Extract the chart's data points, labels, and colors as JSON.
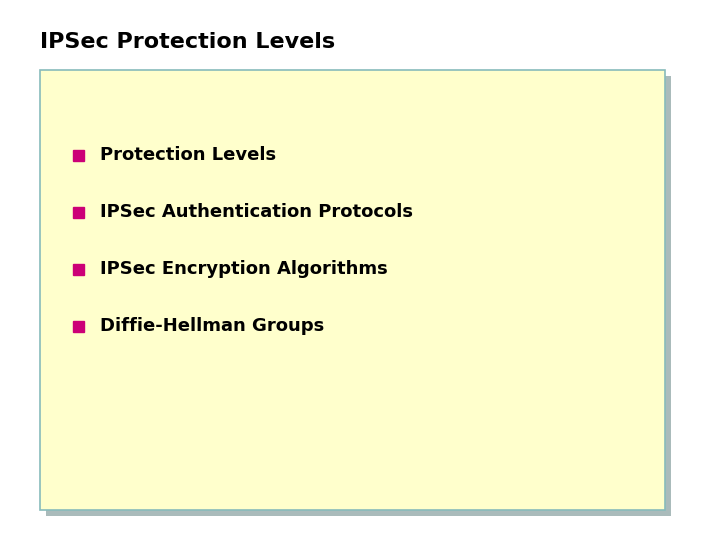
{
  "title": "IPSec Protection Levels",
  "title_fontsize": 16,
  "title_color": "#000000",
  "title_fontweight": "bold",
  "background_color": "#ffffff",
  "box_bg_color": "#ffffcc",
  "box_border_color": "#88bbbb",
  "box_shadow_color": "#aabbbb",
  "bullet_color": "#cc0077",
  "bullet_items": [
    "Protection Levels",
    "IPSec Authentication Protocols",
    "IPSec Encryption Algorithms",
    "Diffie-Hellman Groups"
  ],
  "item_fontsize": 13,
  "item_fontweight": "bold",
  "item_color": "#000000",
  "figsize": [
    7.2,
    5.4
  ],
  "dpi": 100
}
